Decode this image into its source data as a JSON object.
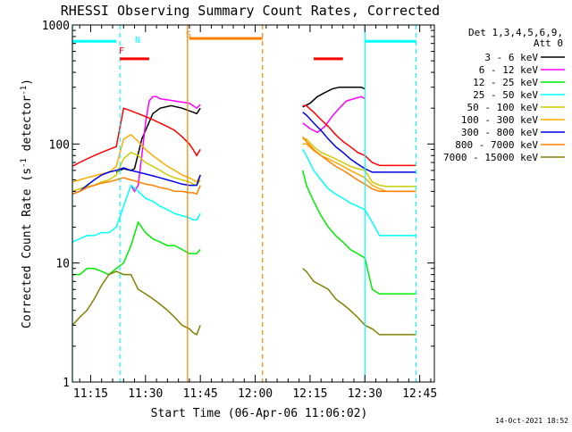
{
  "chart_data": {
    "type": "line",
    "title": "RHESSI Observing Summary Count Rates, Corrected",
    "xlabel": "Start Time (06-Apr-06 11:06:02)",
    "ylabel": "Corrected Count Rate (s",
    "ylabel_sup": "-1",
    "ylabel_tail": " detector",
    "ylabel_end": ")",
    "yscale": "log",
    "xlim": [
      4,
      103
    ],
    "ylim": [
      1,
      1000
    ],
    "x_unit": "minutes after 11:06:02",
    "x_ticks": [
      {
        "value": 9,
        "label": "11:15"
      },
      {
        "value": 24,
        "label": "11:30"
      },
      {
        "value": 39,
        "label": "11:45"
      },
      {
        "value": 54,
        "label": "12:00"
      },
      {
        "value": 69,
        "label": "12:15"
      },
      {
        "value": 84,
        "label": "12:30"
      },
      {
        "value": 99,
        "label": "12:45"
      }
    ],
    "y_ticks": [
      {
        "value": 1,
        "label": "1"
      },
      {
        "value": 10,
        "label": "10"
      },
      {
        "value": 100,
        "label": "100"
      },
      {
        "value": 1000,
        "label": "1000"
      }
    ],
    "legend_header": [
      "Det 1,3,4,5,6,9,",
      "Att 0"
    ],
    "legend_position": "right",
    "footer_date": "14-Oct-2021 18:52",
    "series": [
      {
        "name": "3 - 6 keV",
        "color": "#000000",
        "x": [
          16,
          18,
          20,
          21,
          23,
          26,
          28,
          31,
          34,
          36,
          37,
          38,
          39,
          67,
          69,
          71,
          73,
          75,
          77,
          79,
          81,
          83,
          84
        ],
        "y": [
          58,
          62,
          60,
          62,
          110,
          180,
          200,
          210,
          200,
          190,
          185,
          180,
          200,
          205,
          220,
          250,
          270,
          290,
          300,
          300,
          300,
          300,
          290
        ]
      },
      {
        "name": "6 - 12 keV",
        "color": "#ff00ff",
        "x": [
          20,
          21,
          22,
          23,
          24,
          25,
          26,
          27,
          28,
          30,
          32,
          34,
          36,
          37,
          38,
          39,
          67,
          69,
          71,
          73,
          75,
          77,
          79,
          81,
          83,
          84
        ],
        "y": [
          45,
          40,
          45,
          80,
          150,
          230,
          250,
          250,
          240,
          235,
          230,
          225,
          220,
          210,
          200,
          215,
          150,
          135,
          125,
          140,
          170,
          200,
          230,
          240,
          250,
          240
        ]
      },
      {
        "name": "12 - 25 keV",
        "color": "#00ee00",
        "x": [
          4,
          6,
          8,
          10,
          12,
          14,
          16,
          18,
          20,
          22,
          24,
          26,
          28,
          30,
          32,
          34,
          36,
          37,
          38,
          39,
          67,
          68,
          70,
          72,
          74,
          76,
          78,
          80,
          82,
          84,
          86,
          88,
          90,
          92,
          94,
          96,
          98
        ],
        "y": [
          8,
          8,
          9,
          9,
          8.5,
          8,
          9,
          10,
          14,
          22,
          18,
          16,
          15,
          14,
          14,
          13,
          12,
          12,
          12,
          13,
          60,
          45,
          33,
          25,
          20,
          17,
          15,
          13,
          12,
          11,
          6,
          5.5,
          5.5,
          5.5,
          5.5,
          5.5,
          5.5
        ]
      },
      {
        "name": "25 - 50 keV",
        "color": "#00ffff",
        "x": [
          4,
          6,
          8,
          10,
          12,
          14,
          16,
          18,
          20,
          22,
          24,
          26,
          28,
          30,
          32,
          34,
          36,
          37,
          38,
          39,
          67,
          68,
          70,
          72,
          74,
          76,
          78,
          80,
          82,
          84,
          86,
          88,
          90,
          92,
          94,
          96,
          98
        ],
        "y": [
          15,
          16,
          17,
          17,
          18,
          18,
          20,
          30,
          45,
          40,
          35,
          33,
          30,
          28,
          26,
          25,
          24,
          23,
          23,
          26,
          90,
          80,
          60,
          50,
          42,
          38,
          35,
          32,
          30,
          28,
          22,
          17,
          17,
          17,
          17,
          17,
          17
        ]
      },
      {
        "name": "50 - 100 keV",
        "color": "#cccc00",
        "x": [
          4,
          6,
          8,
          10,
          12,
          14,
          16,
          18,
          20,
          22,
          24,
          26,
          28,
          30,
          32,
          34,
          36,
          37,
          38,
          39,
          67,
          68,
          70,
          72,
          74,
          76,
          78,
          80,
          82,
          84,
          86,
          88,
          90,
          92,
          94,
          96,
          98
        ],
        "y": [
          40,
          42,
          44,
          45,
          48,
          50,
          55,
          75,
          85,
          80,
          70,
          65,
          60,
          55,
          52,
          50,
          48,
          46,
          45,
          50,
          110,
          110,
          95,
          85,
          80,
          75,
          70,
          65,
          62,
          60,
          48,
          45,
          44,
          44,
          44,
          44,
          44
        ]
      },
      {
        "name": "100 - 300 keV",
        "color": "#ffaa00",
        "x": [
          4,
          6,
          8,
          10,
          12,
          14,
          16,
          18,
          20,
          22,
          24,
          26,
          28,
          30,
          32,
          34,
          36,
          37,
          38,
          39,
          67,
          68,
          70,
          72,
          74,
          76,
          78,
          80,
          82,
          84,
          86,
          88,
          90,
          92,
          94,
          96,
          98
        ],
        "y": [
          48,
          50,
          52,
          54,
          56,
          58,
          65,
          110,
          120,
          105,
          90,
          80,
          72,
          65,
          60,
          55,
          52,
          50,
          48,
          55,
          100,
          100,
          88,
          80,
          75,
          70,
          65,
          60,
          56,
          52,
          45,
          42,
          40,
          40,
          40,
          40,
          40
        ]
      },
      {
        "name": "300 - 800 keV",
        "color": "#0000ee",
        "x": [
          4,
          6,
          8,
          10,
          12,
          14,
          16,
          18,
          20,
          22,
          24,
          26,
          28,
          30,
          32,
          34,
          36,
          37,
          38,
          39,
          67,
          68,
          70,
          72,
          74,
          76,
          78,
          80,
          82,
          84,
          86,
          88,
          90,
          92,
          94,
          96,
          98
        ],
        "y": [
          38,
          40,
          45,
          50,
          55,
          58,
          60,
          63,
          60,
          58,
          56,
          54,
          52,
          50,
          48,
          46,
          45,
          45,
          45,
          55,
          185,
          175,
          150,
          130,
          110,
          95,
          85,
          75,
          68,
          62,
          58,
          58,
          58,
          58,
          58,
          58,
          58
        ]
      },
      {
        "name": "800 - 7000 keV",
        "color": "#ff8000",
        "x": [
          4,
          6,
          8,
          10,
          12,
          14,
          16,
          18,
          20,
          22,
          24,
          26,
          28,
          30,
          32,
          34,
          36,
          37,
          38,
          39,
          67,
          68,
          70,
          72,
          74,
          76,
          78,
          80,
          82,
          84,
          86,
          88,
          90,
          92,
          94,
          96,
          98
        ],
        "y": [
          38,
          40,
          43,
          45,
          47,
          48,
          50,
          52,
          50,
          48,
          46,
          45,
          43,
          42,
          40,
          40,
          39,
          39,
          38,
          45,
          115,
          105,
          90,
          80,
          72,
          65,
          60,
          55,
          50,
          46,
          42,
          40,
          40,
          40,
          40,
          40,
          40
        ]
      },
      {
        "name": "7000 - 15000 keV",
        "color": "#808000",
        "x": [
          4,
          6,
          8,
          10,
          12,
          14,
          16,
          18,
          20,
          22,
          24,
          26,
          28,
          30,
          32,
          34,
          36,
          37,
          38,
          39,
          67,
          68,
          70,
          72,
          74,
          76,
          78,
          80,
          82,
          84,
          86,
          88,
          90,
          92,
          94,
          96,
          98
        ],
        "y": [
          3,
          3.5,
          4,
          5,
          6.5,
          8,
          8.5,
          8,
          8,
          6,
          5.5,
          5,
          4.5,
          4,
          3.5,
          3,
          2.8,
          2.6,
          2.5,
          3,
          9,
          8.5,
          7,
          6.5,
          6,
          5,
          4.5,
          4,
          3.5,
          3,
          2.8,
          2.5,
          2.5,
          2.5,
          2.5,
          2.5,
          2.5
        ]
      },
      {
        "name": "",
        "color": "#ff0000",
        "x": [
          4,
          6,
          8,
          10,
          12,
          14,
          16,
          18,
          20,
          22,
          24,
          26,
          28,
          30,
          32,
          34,
          36,
          37,
          38,
          39,
          67,
          68,
          70,
          72,
          74,
          76,
          78,
          80,
          82,
          84,
          86,
          88,
          90,
          92,
          94,
          96,
          98
        ],
        "y": [
          65,
          70,
          75,
          80,
          85,
          90,
          95,
          200,
          190,
          180,
          170,
          160,
          150,
          140,
          130,
          115,
          100,
          90,
          80,
          90,
          210,
          210,
          185,
          160,
          140,
          120,
          105,
          95,
          85,
          80,
          70,
          66,
          66,
          66,
          66,
          66,
          66
        ]
      }
    ],
    "flag_bars": [
      {
        "label": "",
        "color": "#00ffff",
        "x": [
          4,
          16
        ],
        "y": 730
      },
      {
        "label": "N",
        "color": "#00ffff",
        "x": [
          0,
          0
        ],
        "y": 0
      },
      {
        "label": "F",
        "color": "#ff0000",
        "x": [
          17,
          25
        ],
        "y": 520
      },
      {
        "label": "S",
        "color": "#ff8000",
        "x": [
          36,
          56
        ],
        "y": 770
      },
      {
        "label": "",
        "color": "#ff0000",
        "x": [
          70,
          78
        ],
        "y": 520
      },
      {
        "label": "",
        "color": "#00ffff",
        "x": [
          84,
          98
        ],
        "y": 730
      }
    ],
    "vlines": [
      {
        "x": 4,
        "color": "#00ffff",
        "dash": false
      },
      {
        "x": 17,
        "color": "#00ffff",
        "dash": true
      },
      {
        "x": 35.5,
        "color": "#ff8000",
        "dash": false
      },
      {
        "x": 56,
        "color": "#ff8000",
        "dash": true
      },
      {
        "x": 84,
        "color": "#00ffff",
        "dash": false
      },
      {
        "x": 98,
        "color": "#00ffff",
        "dash": true
      }
    ],
    "grid": false
  }
}
